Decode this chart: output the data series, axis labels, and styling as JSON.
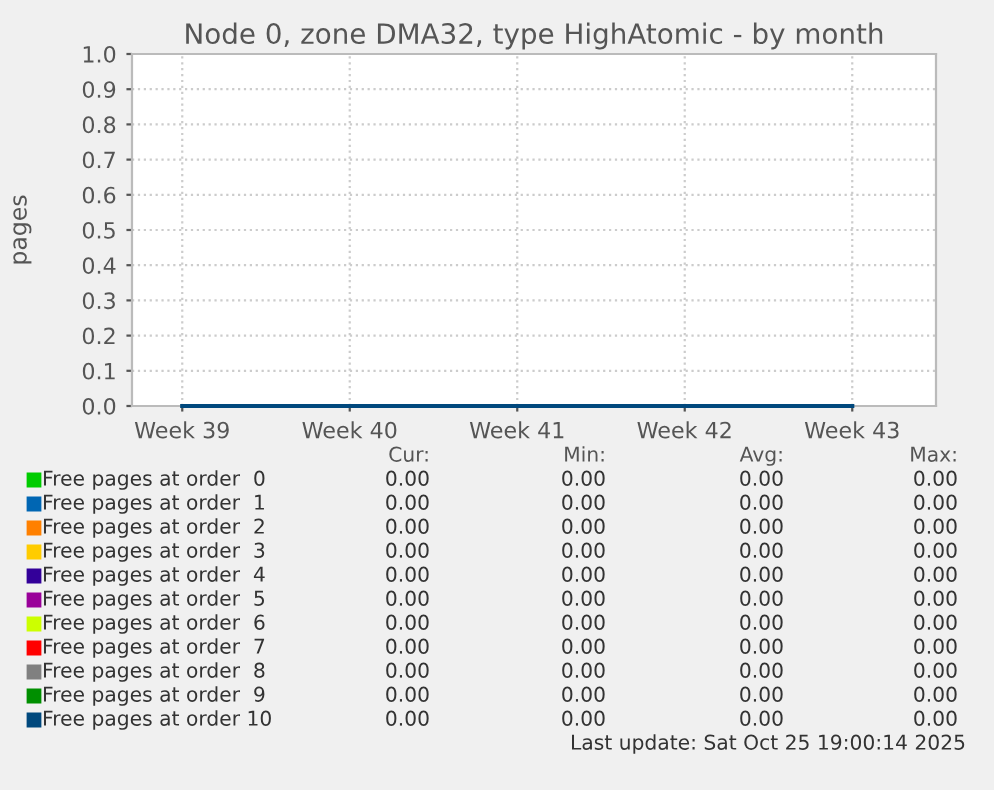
{
  "chart_data": {
    "type": "line",
    "title": "Node 0, zone DMA32, type HighAtomic - by month",
    "ylabel": "pages",
    "categories": [
      "Week 39",
      "Week 40",
      "Week 41",
      "Week 42",
      "Week 43"
    ],
    "ylim": [
      0,
      1
    ],
    "yticks": [
      {
        "value": 0,
        "label": "0.0"
      },
      {
        "value": 0.1,
        "label": "0.1"
      },
      {
        "value": 0.2,
        "label": "0.2"
      },
      {
        "value": 0.3,
        "label": "0.3"
      },
      {
        "value": 0.4,
        "label": "0.4"
      },
      {
        "value": 0.5,
        "label": "0.5"
      },
      {
        "value": 0.6,
        "label": "0.6"
      },
      {
        "value": 0.7,
        "label": "0.7"
      },
      {
        "value": 0.8,
        "label": "0.8"
      },
      {
        "value": 0.9,
        "label": "0.9"
      },
      {
        "value": 1,
        "label": "1.0"
      }
    ],
    "grid": true,
    "legend": "bottom",
    "line_style": "solid",
    "series": [
      {
        "name": "Free pages at order  0",
        "color": "#00cc00",
        "values": [
          null,
          null,
          null,
          null,
          null
        ]
      },
      {
        "name": "Free pages at order  1",
        "color": "#0066b3",
        "values": [
          null,
          null,
          null,
          null,
          null
        ]
      },
      {
        "name": "Free pages at order  2",
        "color": "#ff8000",
        "values": [
          null,
          null,
          null,
          null,
          null
        ]
      },
      {
        "name": "Free pages at order  3",
        "color": "#ffcc00",
        "values": [
          null,
          null,
          null,
          null,
          null
        ]
      },
      {
        "name": "Free pages at order  4",
        "color": "#330099",
        "values": [
          null,
          null,
          null,
          null,
          null
        ]
      },
      {
        "name": "Free pages at order  5",
        "color": "#990099",
        "values": [
          null,
          null,
          null,
          null,
          null
        ]
      },
      {
        "name": "Free pages at order  6",
        "color": "#ccff00",
        "values": [
          null,
          null,
          null,
          null,
          null
        ]
      },
      {
        "name": "Free pages at order  7",
        "color": "#ff0000",
        "values": [
          null,
          null,
          null,
          null,
          null
        ]
      },
      {
        "name": "Free pages at order  8",
        "color": "#808080",
        "values": [
          null,
          null,
          null,
          null,
          null
        ]
      },
      {
        "name": "Free pages at order  9",
        "color": "#008f00",
        "values": [
          null,
          null,
          null,
          null,
          null
        ]
      },
      {
        "name": "Free pages at order 10",
        "color": "#00487d",
        "values": [
          0,
          0,
          0,
          0,
          0
        ]
      }
    ],
    "annotations": [
      "Cur:",
      "Min:",
      "Avg:",
      "Max:",
      "0.00",
      "0.00",
      "0.00",
      "0.00",
      "0.00",
      "0.00",
      "0.00",
      "0.00",
      "0.00",
      "0.00",
      "0.00",
      "0.00",
      "0.00",
      "0.00",
      "0.00",
      "0.00",
      "0.00",
      "0.00",
      "0.00",
      "0.00",
      "0.00",
      "0.00",
      "0.00",
      "0.00",
      "0.00",
      "0.00",
      "0.00",
      "0.00",
      "0.00",
      "0.00",
      "0.00",
      "0.00",
      "0.00",
      "0.00",
      "0.00",
      "0.00",
      "0.00",
      "0.00",
      "0.00",
      "0.00",
      "0.00",
      "0.00",
      "0.00",
      "0.00",
      "Last update: Sat Oct 25 19:00:14 2025"
    ]
  }
}
